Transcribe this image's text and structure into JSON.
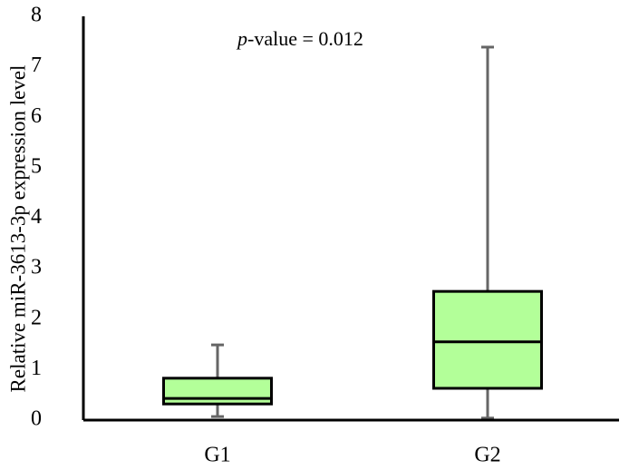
{
  "chart_data": {
    "type": "box",
    "y_label": "Relative miR-3613-3p expression level",
    "annotation": {
      "italic": "p",
      "text": "-value = 0.012"
    },
    "categories": [
      "G1",
      "G2"
    ],
    "min": [
      0.07,
      0.04
    ],
    "q1": [
      0.32,
      0.63
    ],
    "median": [
      0.43,
      1.55
    ],
    "q3": [
      0.83,
      2.55
    ],
    "max": [
      1.49,
      7.39
    ],
    "color": "#b3ff99",
    "ylim": [
      0,
      8
    ],
    "yticks": [
      0,
      1,
      2,
      3,
      4,
      5,
      6,
      7,
      8
    ],
    "grid": false
  }
}
